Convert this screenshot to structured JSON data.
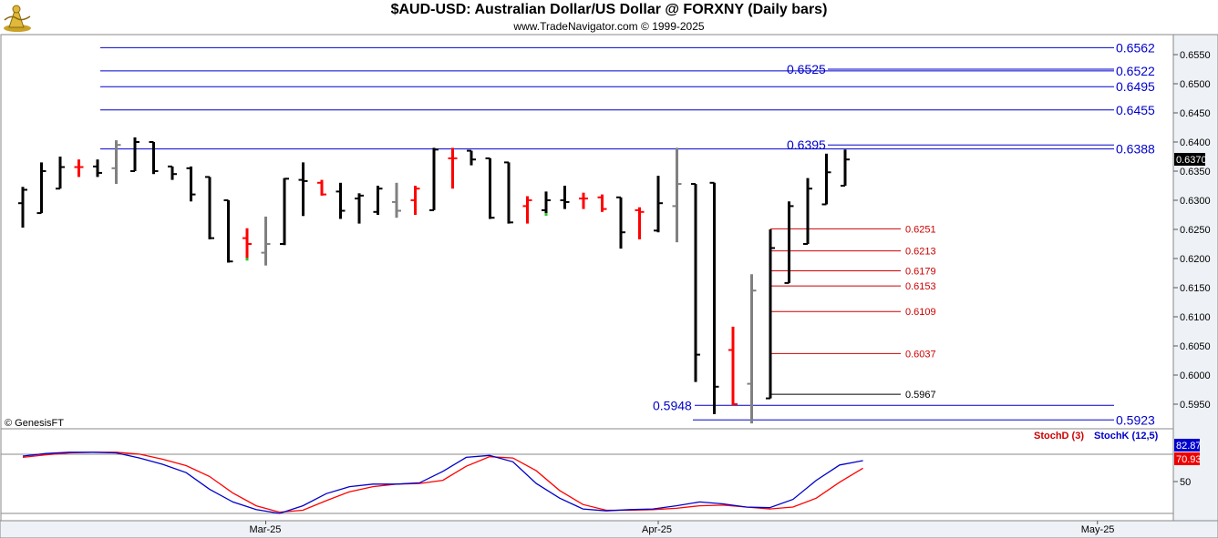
{
  "header": {
    "title": "$AUD-USD:  Australian Dollar/US Dollar @ FORXNY  (Daily bars)",
    "subtitle": "www.TradeNavigator.com © 1999-2025",
    "copyright": "© GenesisFT"
  },
  "colors": {
    "up_bar": "#000000",
    "down_bar": "#000000",
    "doji_bar": "#ff0000",
    "gray_bar": "#808080",
    "resistance_line": "#0000cc",
    "support_line": "#cc0000",
    "stoch_d": "#ff0000",
    "stoch_k": "#0000cc",
    "axis_panel": "#eef1f6"
  },
  "chart_data": [
    {
      "type": "ohlc",
      "title": "$AUD-USD:  Australian Dollar/US Dollar @ FORXNY  (Daily bars)",
      "ylim": [
        0.5915,
        0.6575
      ],
      "y_ticks": [
        "0.5950",
        "0.6000",
        "0.6050",
        "0.6100",
        "0.6150",
        "0.6200",
        "0.6250",
        "0.6300",
        "0.6350",
        "0.6400",
        "0.6450",
        "0.6500",
        "0.6550"
      ],
      "x_ticks": [
        {
          "label": "Mar-25",
          "bar": 13
        },
        {
          "label": "Apr-25",
          "bar": 34
        },
        {
          "label": "May-25",
          "bar": 57.5
        }
      ],
      "last_price": "0.6370",
      "bars": [
        {
          "o": 0.6295,
          "h": 0.6323,
          "l": 0.6253,
          "c": 0.6318,
          "k": "b"
        },
        {
          "o": 0.6278,
          "h": 0.6365,
          "l": 0.6278,
          "c": 0.635,
          "k": "b"
        },
        {
          "o": 0.632,
          "h": 0.6375,
          "l": 0.632,
          "c": 0.6357,
          "k": "b"
        },
        {
          "o": 0.6357,
          "h": 0.637,
          "l": 0.634,
          "c": 0.6357,
          "k": "r"
        },
        {
          "o": 0.6358,
          "h": 0.637,
          "l": 0.634,
          "c": 0.6347,
          "k": "b"
        },
        {
          "o": 0.6355,
          "h": 0.6403,
          "l": 0.6328,
          "c": 0.6395,
          "k": "g"
        },
        {
          "o": 0.635,
          "h": 0.6408,
          "l": 0.635,
          "c": 0.64,
          "k": "b"
        },
        {
          "o": 0.64,
          "h": 0.64,
          "l": 0.6345,
          "c": 0.635,
          "k": "b"
        },
        {
          "o": 0.6358,
          "h": 0.6358,
          "l": 0.6335,
          "c": 0.6345,
          "k": "b"
        },
        {
          "o": 0.6355,
          "h": 0.6358,
          "l": 0.6298,
          "c": 0.631,
          "k": "b"
        },
        {
          "o": 0.634,
          "h": 0.634,
          "l": 0.6233,
          "c": 0.6235,
          "k": "b"
        },
        {
          "o": 0.63,
          "h": 0.63,
          "l": 0.6193,
          "c": 0.6195,
          "k": "b"
        },
        {
          "o": 0.6235,
          "h": 0.6252,
          "l": 0.6198,
          "c": 0.6225,
          "k": "r"
        },
        {
          "o": 0.621,
          "h": 0.6272,
          "l": 0.6188,
          "c": 0.6225,
          "k": "g"
        },
        {
          "o": 0.6225,
          "h": 0.6338,
          "l": 0.6223,
          "c": 0.6337,
          "k": "b"
        },
        {
          "o": 0.6335,
          "h": 0.6365,
          "l": 0.6273,
          "c": 0.6333,
          "k": "b"
        },
        {
          "o": 0.633,
          "h": 0.6335,
          "l": 0.6308,
          "c": 0.631,
          "k": "r"
        },
        {
          "o": 0.6315,
          "h": 0.633,
          "l": 0.6268,
          "c": 0.6282,
          "k": "b"
        },
        {
          "o": 0.6303,
          "h": 0.6312,
          "l": 0.626,
          "c": 0.6308,
          "k": "b"
        },
        {
          "o": 0.628,
          "h": 0.6325,
          "l": 0.6275,
          "c": 0.632,
          "k": "b"
        },
        {
          "o": 0.6297,
          "h": 0.633,
          "l": 0.627,
          "c": 0.6282,
          "k": "g"
        },
        {
          "o": 0.63,
          "h": 0.6325,
          "l": 0.6275,
          "c": 0.632,
          "k": "r"
        },
        {
          "o": 0.6283,
          "h": 0.639,
          "l": 0.6283,
          "c": 0.6387,
          "k": "b"
        },
        {
          "o": 0.6372,
          "h": 0.639,
          "l": 0.632,
          "c": 0.6372,
          "k": "r"
        },
        {
          "o": 0.6385,
          "h": 0.6385,
          "l": 0.636,
          "c": 0.637,
          "k": "b"
        },
        {
          "o": 0.6372,
          "h": 0.6372,
          "l": 0.6268,
          "c": 0.627,
          "k": "b"
        },
        {
          "o": 0.6365,
          "h": 0.6365,
          "l": 0.626,
          "c": 0.6262,
          "k": "b"
        },
        {
          "o": 0.629,
          "h": 0.6307,
          "l": 0.626,
          "c": 0.63,
          "k": "r"
        },
        {
          "o": 0.6283,
          "h": 0.6315,
          "l": 0.6275,
          "c": 0.63,
          "k": "b"
        },
        {
          "o": 0.63,
          "h": 0.6325,
          "l": 0.6285,
          "c": 0.6297,
          "k": "b"
        },
        {
          "o": 0.6303,
          "h": 0.6313,
          "l": 0.6285,
          "c": 0.6303,
          "k": "r"
        },
        {
          "o": 0.6305,
          "h": 0.631,
          "l": 0.628,
          "c": 0.6285,
          "k": "r"
        },
        {
          "o": 0.6305,
          "h": 0.6305,
          "l": 0.6217,
          "c": 0.6245,
          "k": "b"
        },
        {
          "o": 0.6283,
          "h": 0.6288,
          "l": 0.6233,
          "c": 0.628,
          "k": "r"
        },
        {
          "o": 0.6248,
          "h": 0.6342,
          "l": 0.6245,
          "c": 0.6295,
          "k": "b"
        },
        {
          "o": 0.629,
          "h": 0.639,
          "l": 0.6228,
          "c": 0.6328,
          "k": "g"
        },
        {
          "o": 0.6328,
          "h": 0.6328,
          "l": 0.5988,
          "c": 0.6035,
          "k": "b"
        },
        {
          "o": 0.633,
          "h": 0.633,
          "l": 0.5933,
          "c": 0.598,
          "k": "b"
        },
        {
          "o": 0.6043,
          "h": 0.6083,
          "l": 0.5948,
          "c": 0.595,
          "k": "r"
        },
        {
          "o": 0.5985,
          "h": 0.6173,
          "l": 0.5917,
          "c": 0.6145,
          "k": "g"
        },
        {
          "o": 0.596,
          "h": 0.625,
          "l": 0.596,
          "c": 0.6218,
          "k": "b"
        },
        {
          "o": 0.6158,
          "h": 0.6298,
          "l": 0.6158,
          "c": 0.629,
          "k": "b"
        },
        {
          "o": 0.6225,
          "h": 0.6338,
          "l": 0.6225,
          "c": 0.632,
          "k": "b"
        },
        {
          "o": 0.6293,
          "h": 0.638,
          "l": 0.6293,
          "c": 0.6348,
          "k": "b"
        },
        {
          "o": 0.6325,
          "h": 0.6387,
          "l": 0.6325,
          "c": 0.637,
          "k": "b"
        }
      ],
      "resistance_levels": [
        {
          "value": 0.6562,
          "label": "0.6562"
        },
        {
          "value": 0.6522,
          "label": "0.6522"
        },
        {
          "value": 0.6495,
          "label": "0.6495"
        },
        {
          "value": 0.6455,
          "label": "0.6455"
        },
        {
          "value": 0.6388,
          "label": "0.6388"
        },
        {
          "value": 0.5923,
          "label": "0.5923"
        }
      ],
      "support_levels": [
        {
          "value": 0.6251,
          "label": "0.6251"
        },
        {
          "value": 0.6213,
          "label": "0.6213"
        },
        {
          "value": 0.6179,
          "label": "0.6179"
        },
        {
          "value": 0.6153,
          "label": "0.6153"
        },
        {
          "value": 0.6109,
          "label": "0.6109"
        },
        {
          "value": 0.6037,
          "label": "0.6037"
        }
      ],
      "annotations": [
        {
          "value": 0.6525,
          "label": "0.6525"
        },
        {
          "value": 0.6395,
          "label": "0.6395"
        },
        {
          "value": 0.5948,
          "label": "0.5948"
        },
        {
          "value": 0.5967,
          "label": "0.5967"
        }
      ]
    },
    {
      "type": "line",
      "ylim": [
        0,
        100
      ],
      "y_ticks": [
        "50"
      ],
      "series": [
        {
          "name": "StochD (3)",
          "color": "#ff0000",
          "last": "70.93",
          "values": [
            88,
            92,
            95,
            96,
            96,
            93,
            85,
            75,
            58,
            32,
            12,
            2,
            5,
            20,
            34,
            42,
            46,
            47,
            52,
            74,
            89,
            87,
            67,
            36,
            14,
            5,
            5,
            6,
            8,
            12,
            13,
            10,
            7,
            10,
            24,
            49,
            70.93
          ]
        },
        {
          "name": "StochK (12,5)",
          "color": "#0000cc",
          "last": "82.87",
          "values": [
            90,
            94,
            96,
            96,
            95,
            87,
            77,
            64,
            38,
            18,
            6,
            0,
            12,
            31,
            42,
            46,
            46,
            48,
            66,
            88,
            91,
            81,
            47,
            24,
            7,
            4,
            6,
            7,
            12,
            18,
            15,
            10,
            9,
            22,
            52,
            76,
            82.87
          ]
        }
      ]
    }
  ]
}
